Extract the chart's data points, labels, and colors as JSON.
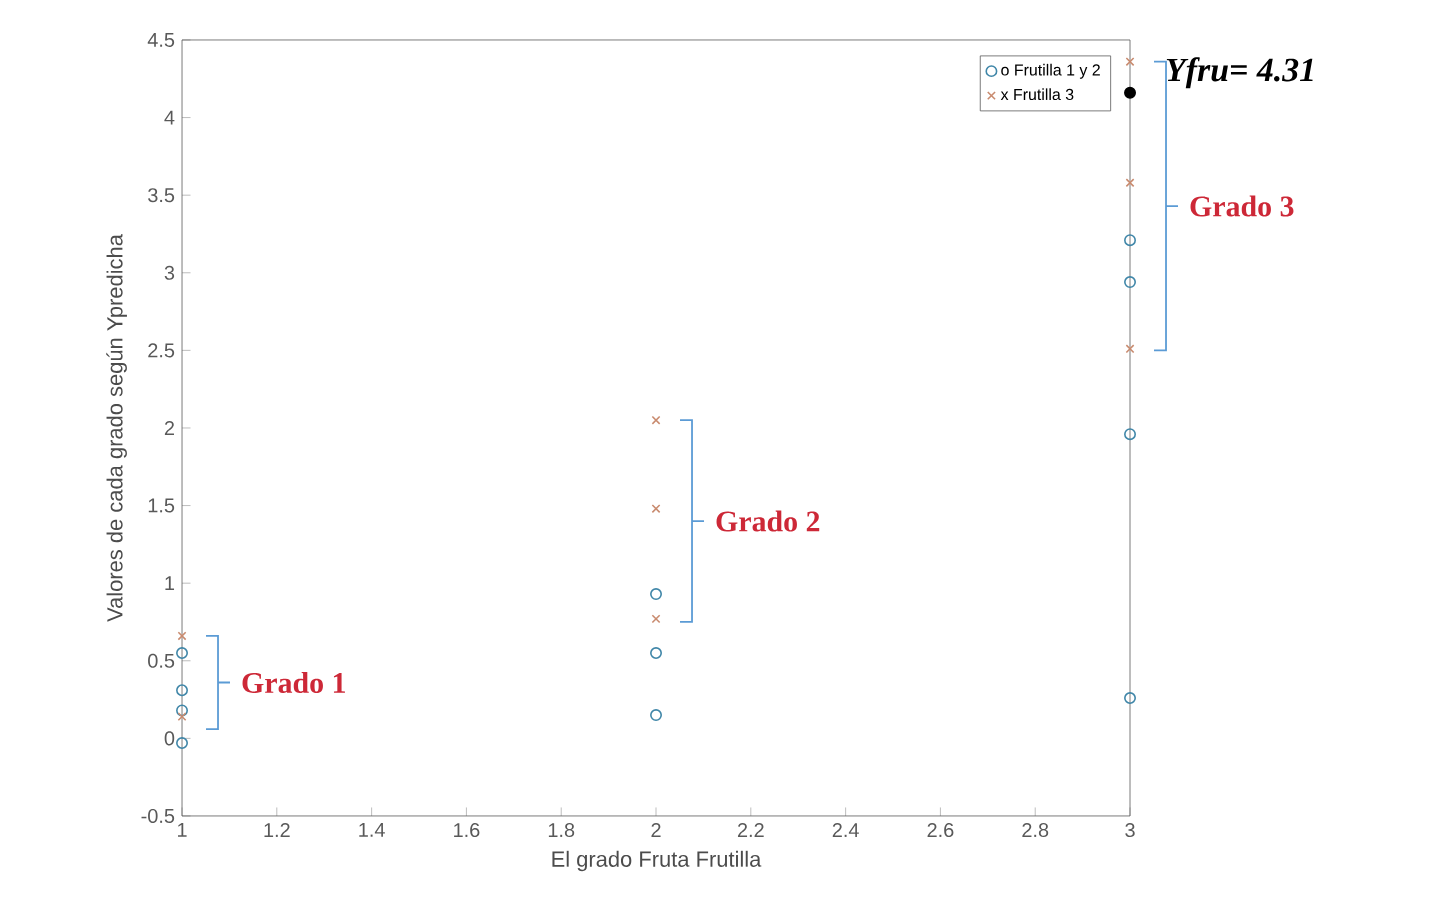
{
  "chart_data": {
    "type": "scatter",
    "xlabel": "El grado Fruta Frutilla",
    "ylabel": "Valores de cada grado según Ypredicha",
    "xlim": [
      1,
      3
    ],
    "xticks": [
      1,
      1.2,
      1.4,
      1.6,
      1.8,
      2,
      2.2,
      2.4,
      2.6,
      2.8,
      3
    ],
    "ylim": [
      -0.5,
      4.5
    ],
    "yticks": [
      -0.5,
      0,
      0.5,
      1,
      1.5,
      2,
      2.5,
      3,
      3.5,
      4,
      4.5
    ],
    "legend": "top right",
    "series": [
      {
        "name": "o Frutilla 1 y 2",
        "color": "#3f86a8",
        "marker": "circle",
        "x": [
          1,
          1,
          1,
          1,
          2,
          2,
          2,
          3,
          3,
          3,
          3
        ],
        "values": [
          0.55,
          0.31,
          0.18,
          -0.03,
          0.93,
          0.55,
          0.15,
          3.21,
          2.94,
          1.96,
          0.26
        ]
      },
      {
        "name": "x Frutilla 3",
        "color": "#c98b6f",
        "marker": "cross",
        "x": [
          1,
          1,
          2,
          2,
          2,
          3,
          3,
          3
        ],
        "values": [
          0.66,
          0.14,
          2.05,
          1.48,
          0.77,
          4.36,
          3.58,
          2.51
        ]
      },
      {
        "color": "#000000",
        "marker": "circle",
        "x": [
          3
        ],
        "values": [
          4.16
        ]
      }
    ],
    "annotations": [
      {
        "text": "Grado 1",
        "x": 1,
        "y": 0.36
      },
      {
        "text": "Grado 2",
        "x": 2,
        "y": 1.4
      },
      "Grado 3",
      {
        "text": "Yfru= 4.31",
        "x": 3,
        "y": 4.16
      }
    ]
  }
}
